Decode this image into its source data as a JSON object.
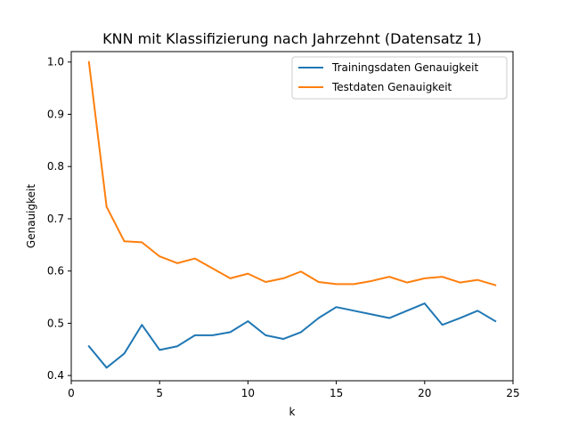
{
  "chart_data": {
    "type": "line",
    "title": "KNN mit Klassifizierung nach Jahrzehnt (Datensatz 1)",
    "xlabel": "k",
    "ylabel": "Genauigkeit",
    "xlim": [
      0,
      25
    ],
    "ylim": [
      0.39,
      1.02
    ],
    "xticks": [
      0,
      5,
      10,
      15,
      20,
      25
    ],
    "yticks": [
      0.4,
      0.5,
      0.6,
      0.7,
      0.8,
      0.9,
      1.0
    ],
    "grid": false,
    "legend_position": "top-right",
    "x": [
      1,
      2,
      3,
      4,
      5,
      6,
      7,
      8,
      9,
      10,
      11,
      12,
      13,
      14,
      15,
      16,
      17,
      18,
      19,
      20,
      21,
      22,
      23,
      24
    ],
    "series": [
      {
        "name": "Trainingsdaten Genauigkeit",
        "color": "#1f77b4",
        "values": [
          0.456,
          0.415,
          0.442,
          0.497,
          0.449,
          0.456,
          0.477,
          0.477,
          0.483,
          0.504,
          0.477,
          0.47,
          0.483,
          0.51,
          0.531,
          0.524,
          0.517,
          0.51,
          0.524,
          0.538,
          0.497,
          0.51,
          0.524,
          0.504
        ]
      },
      {
        "name": "Testdaten Genauigkeit",
        "color": "#ff7f0e",
        "values": [
          1.0,
          0.723,
          0.657,
          0.655,
          0.628,
          0.615,
          0.624,
          0.605,
          0.586,
          0.595,
          0.579,
          0.586,
          0.599,
          0.579,
          0.575,
          0.575,
          0.581,
          0.589,
          0.578,
          0.586,
          0.589,
          0.578,
          0.583,
          0.573
        ]
      }
    ]
  }
}
